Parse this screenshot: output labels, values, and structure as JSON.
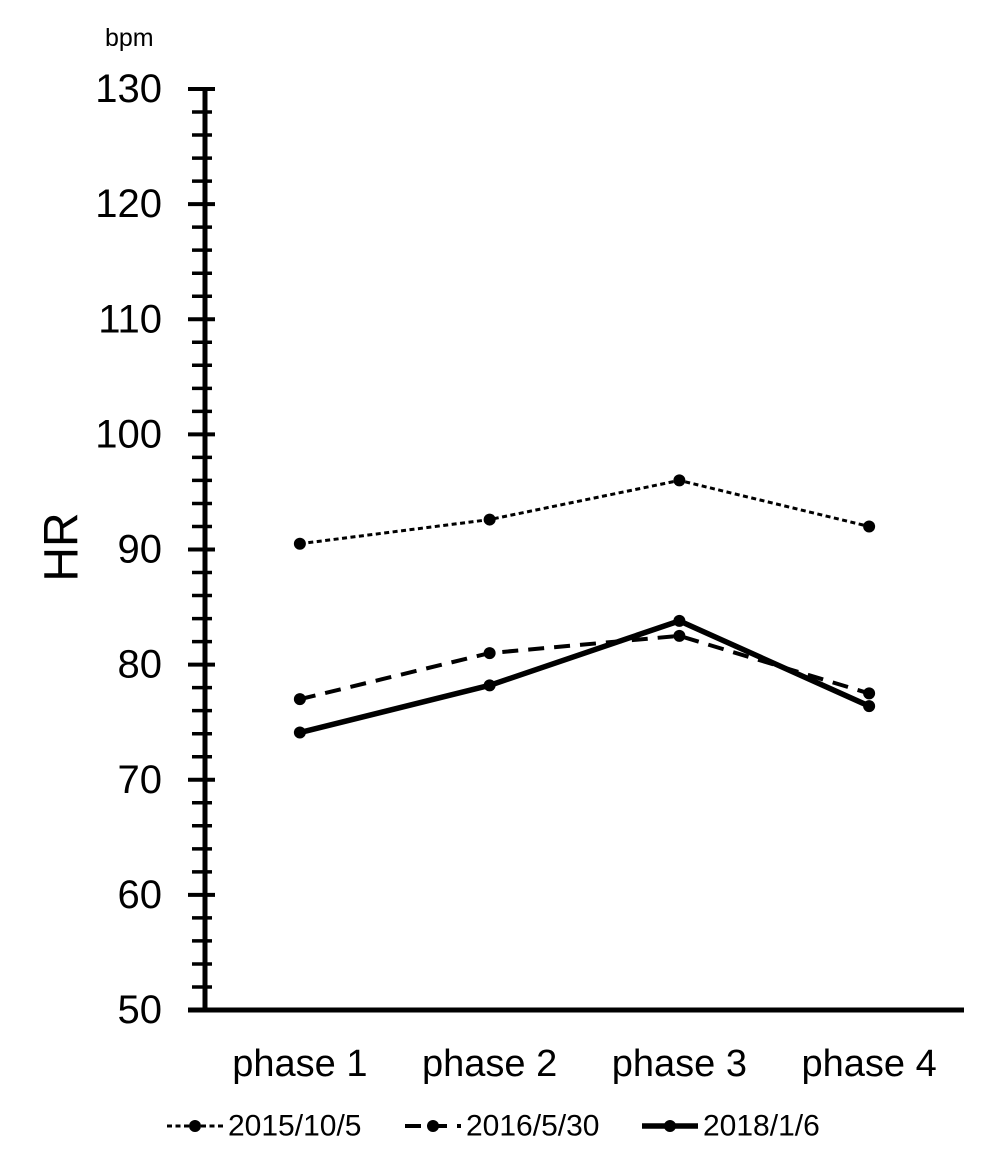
{
  "figure": {
    "background": "#ffffff",
    "foreground": "#000000"
  },
  "chart_data": {
    "type": "line",
    "title": "",
    "unit_label": "bpm",
    "ylabel": "HR",
    "xlabel": "",
    "categories": [
      "phase 1",
      "phase 2",
      "phase 3",
      "phase 4"
    ],
    "series": [
      {
        "name": "2015/10/5",
        "style": "dotted",
        "marker": "circle",
        "values": [
          90.5,
          92.6,
          96.0,
          92.0
        ]
      },
      {
        "name": "2016/5/30",
        "style": "dashed",
        "marker": "circle",
        "values": [
          77.0,
          81.0,
          82.5,
          77.5
        ]
      },
      {
        "name": "2018/1/6",
        "style": "solid",
        "marker": "circle",
        "values": [
          74.1,
          78.2,
          83.8,
          76.4
        ]
      }
    ],
    "ylim": [
      50,
      130
    ],
    "y_major_step": 10,
    "y_minor_step": 2,
    "grid": false,
    "legend_position": "bottom",
    "line_color": "#000000"
  }
}
